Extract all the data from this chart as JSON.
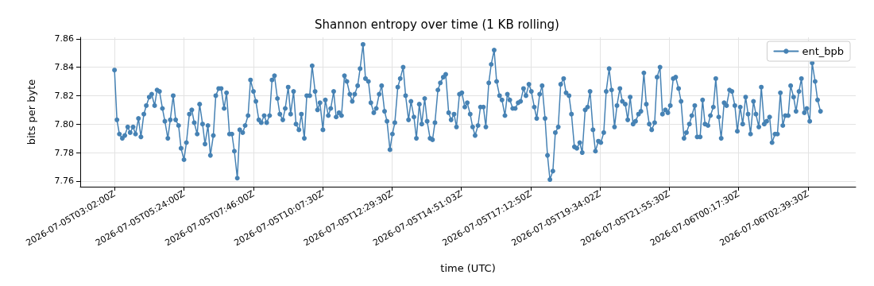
{
  "chart_data": {
    "type": "line",
    "title": "Shannon entropy over time (1 KB rolling)",
    "xlabel": "time (UTC)",
    "ylabel": "bits per byte",
    "x": [
      "2026-07-05T03:02",
      "2026-07-05T03:07",
      "2026-07-05T03:12",
      "2026-07-05T03:18",
      "2026-07-05T03:23",
      "2026-07-05T03:29",
      "2026-07-05T03:34",
      "2026-07-05T03:40",
      "2026-07-05T03:45",
      "2026-07-05T03:51",
      "2026-07-05T03:56",
      "2026-07-05T04:02",
      "2026-07-05T04:07",
      "2026-07-05T04:13",
      "2026-07-05T04:18",
      "2026-07-05T04:24",
      "2026-07-05T04:29",
      "2026-07-05T04:34",
      "2026-07-05T04:40",
      "2026-07-05T04:45",
      "2026-07-05T04:51",
      "2026-07-05T04:56",
      "2026-07-05T05:02",
      "2026-07-05T05:07",
      "2026-07-05T05:13",
      "2026-07-05T05:18",
      "2026-07-05T05:24",
      "2026-07-05T05:29",
      "2026-07-05T05:35",
      "2026-07-05T05:40",
      "2026-07-05T05:45",
      "2026-07-05T05:51",
      "2026-07-05T05:56",
      "2026-07-05T06:02",
      "2026-07-05T06:07",
      "2026-07-05T06:13",
      "2026-07-05T06:18",
      "2026-07-05T06:24",
      "2026-07-05T06:29",
      "2026-07-05T06:35",
      "2026-07-05T06:40",
      "2026-07-05T06:46",
      "2026-07-05T06:51",
      "2026-07-05T06:57",
      "2026-07-05T07:02",
      "2026-07-05T07:07",
      "2026-07-05T07:13",
      "2026-07-05T07:18",
      "2026-07-05T07:24",
      "2026-07-05T07:29",
      "2026-07-05T07:35",
      "2026-07-05T07:40",
      "2026-07-05T07:46",
      "2026-07-05T07:51",
      "2026-07-05T07:57",
      "2026-07-05T08:02",
      "2026-07-05T08:08",
      "2026-07-05T08:13",
      "2026-07-05T08:19",
      "2026-07-05T08:24",
      "2026-07-05T08:29",
      "2026-07-05T08:35",
      "2026-07-05T08:40",
      "2026-07-05T08:46",
      "2026-07-05T08:51",
      "2026-07-05T08:57",
      "2026-07-05T09:02",
      "2026-07-05T09:08",
      "2026-07-05T09:13",
      "2026-07-05T09:19",
      "2026-07-05T09:24",
      "2026-07-05T09:30",
      "2026-07-05T09:35",
      "2026-07-05T09:41",
      "2026-07-05T09:46",
      "2026-07-05T09:52",
      "2026-07-05T09:57",
      "2026-07-05T10:02",
      "2026-07-05T10:08",
      "2026-07-05T10:13",
      "2026-07-05T10:19",
      "2026-07-05T10:24",
      "2026-07-05T10:30",
      "2026-07-05T10:35",
      "2026-07-05T10:41",
      "2026-07-05T10:46",
      "2026-07-05T10:52",
      "2026-07-05T10:57",
      "2026-07-05T11:03",
      "2026-07-05T11:08",
      "2026-07-05T11:13",
      "2026-07-05T11:19",
      "2026-07-05T11:24",
      "2026-07-05T11:30",
      "2026-07-05T11:35",
      "2026-07-05T11:41",
      "2026-07-05T11:46",
      "2026-07-05T11:52",
      "2026-07-05T11:57",
      "2026-07-05T12:03",
      "2026-07-05T12:08",
      "2026-07-05T12:14",
      "2026-07-05T12:19",
      "2026-07-05T12:25",
      "2026-07-05T12:30",
      "2026-07-05T12:35",
      "2026-07-05T12:41",
      "2026-07-05T12:46",
      "2026-07-05T12:52",
      "2026-07-05T12:57",
      "2026-07-05T13:03",
      "2026-07-05T13:08",
      "2026-07-05T13:14",
      "2026-07-05T13:19",
      "2026-07-05T13:25",
      "2026-07-05T13:30",
      "2026-07-05T13:36",
      "2026-07-05T13:41",
      "2026-07-05T13:47",
      "2026-07-05T13:52",
      "2026-07-05T13:57",
      "2026-07-05T14:03",
      "2026-07-05T14:08",
      "2026-07-05T14:14",
      "2026-07-05T14:19",
      "2026-07-05T14:25",
      "2026-07-05T14:30",
      "2026-07-05T14:36",
      "2026-07-05T14:41",
      "2026-07-05T14:47",
      "2026-07-05T14:52",
      "2026-07-05T14:58",
      "2026-07-05T15:03",
      "2026-07-05T15:09",
      "2026-07-05T15:14",
      "2026-07-05T15:19",
      "2026-07-05T15:25",
      "2026-07-05T15:30",
      "2026-07-05T15:36",
      "2026-07-05T15:41",
      "2026-07-05T15:47",
      "2026-07-05T15:52",
      "2026-07-05T15:58",
      "2026-07-05T16:03",
      "2026-07-05T16:09",
      "2026-07-05T16:14",
      "2026-07-05T16:20",
      "2026-07-05T16:25",
      "2026-07-05T16:30",
      "2026-07-05T16:36",
      "2026-07-05T16:41",
      "2026-07-05T16:47",
      "2026-07-05T16:52",
      "2026-07-05T16:58",
      "2026-07-05T17:03",
      "2026-07-05T17:09",
      "2026-07-05T17:14",
      "2026-07-05T17:20",
      "2026-07-05T17:25",
      "2026-07-05T17:31",
      "2026-07-05T17:36",
      "2026-07-05T17:42",
      "2026-07-05T17:47",
      "2026-07-05T17:52",
      "2026-07-05T17:58",
      "2026-07-05T18:03",
      "2026-07-05T18:09",
      "2026-07-05T18:14",
      "2026-07-05T18:20",
      "2026-07-05T18:25",
      "2026-07-05T18:31",
      "2026-07-05T18:36",
      "2026-07-05T18:42",
      "2026-07-05T18:47",
      "2026-07-05T18:53",
      "2026-07-05T18:58",
      "2026-07-05T19:04",
      "2026-07-05T19:09",
      "2026-07-05T19:14",
      "2026-07-05T19:20",
      "2026-07-05T19:25",
      "2026-07-05T19:31",
      "2026-07-05T19:36",
      "2026-07-05T19:42",
      "2026-07-05T19:47",
      "2026-07-05T19:53",
      "2026-07-05T19:58",
      "2026-07-05T20:04",
      "2026-07-05T20:09",
      "2026-07-05T20:15",
      "2026-07-05T20:20",
      "2026-07-05T20:26",
      "2026-07-05T20:31",
      "2026-07-05T20:36",
      "2026-07-05T20:42",
      "2026-07-05T20:47",
      "2026-07-05T20:53",
      "2026-07-05T20:58",
      "2026-07-05T21:04",
      "2026-07-05T21:09",
      "2026-07-05T21:15",
      "2026-07-05T21:20",
      "2026-07-05T21:26",
      "2026-07-05T21:31",
      "2026-07-05T21:37",
      "2026-07-05T21:42",
      "2026-07-05T21:48",
      "2026-07-05T21:53",
      "2026-07-05T21:58",
      "2026-07-05T22:04",
      "2026-07-05T22:09",
      "2026-07-05T22:15",
      "2026-07-05T22:20",
      "2026-07-05T22:26",
      "2026-07-05T22:31",
      "2026-07-05T22:37",
      "2026-07-05T22:42",
      "2026-07-05T22:48",
      "2026-07-05T22:53",
      "2026-07-05T22:59",
      "2026-07-05T23:04",
      "2026-07-05T23:09",
      "2026-07-05T23:15",
      "2026-07-05T23:20",
      "2026-07-05T23:26",
      "2026-07-05T23:31",
      "2026-07-05T23:37",
      "2026-07-05T23:42",
      "2026-07-05T23:48",
      "2026-07-05T23:53",
      "2026-07-05T23:59",
      "2026-07-06T00:04",
      "2026-07-06T00:10",
      "2026-07-06T00:15",
      "2026-07-06T00:21",
      "2026-07-06T00:26",
      "2026-07-06T00:32",
      "2026-07-06T00:37",
      "2026-07-06T00:42",
      "2026-07-06T00:48",
      "2026-07-06T00:53",
      "2026-07-06T00:59",
      "2026-07-06T01:04",
      "2026-07-06T01:10",
      "2026-07-06T01:15",
      "2026-07-06T01:21",
      "2026-07-06T01:26",
      "2026-07-06T01:32",
      "2026-07-06T01:37",
      "2026-07-06T01:43",
      "2026-07-06T01:48",
      "2026-07-06T01:53",
      "2026-07-06T01:59",
      "2026-07-06T02:04",
      "2026-07-06T02:10",
      "2026-07-06T02:15",
      "2026-07-06T02:21",
      "2026-07-06T02:26",
      "2026-07-06T02:32",
      "2026-07-06T02:37",
      "2026-07-06T02:43",
      "2026-07-06T02:48",
      "2026-07-06T02:54",
      "2026-07-06T02:59",
      "2026-07-06T03:05"
    ],
    "series": [
      {
        "name": "ent_bpb",
        "color": "#4682b4",
        "values": [
          7.838,
          7.803,
          7.793,
          7.79,
          7.792,
          7.798,
          7.794,
          7.798,
          7.793,
          7.804,
          7.791,
          7.807,
          7.813,
          7.819,
          7.821,
          7.813,
          7.824,
          7.823,
          7.811,
          7.802,
          7.79,
          7.803,
          7.82,
          7.803,
          7.799,
          7.783,
          7.775,
          7.787,
          7.807,
          7.81,
          7.801,
          7.793,
          7.814,
          7.8,
          7.786,
          7.799,
          7.778,
          7.792,
          7.82,
          7.825,
          7.825,
          7.811,
          7.822,
          7.793,
          7.793,
          7.781,
          7.762,
          7.796,
          7.794,
          7.799,
          7.806,
          7.831,
          7.823,
          7.816,
          7.803,
          7.801,
          7.806,
          7.801,
          7.806,
          7.831,
          7.834,
          7.818,
          7.807,
          7.803,
          7.811,
          7.826,
          7.807,
          7.823,
          7.8,
          7.796,
          7.807,
          7.79,
          7.82,
          7.82,
          7.841,
          7.823,
          7.81,
          7.815,
          7.796,
          7.817,
          7.806,
          7.811,
          7.823,
          7.805,
          7.808,
          7.806,
          7.834,
          7.83,
          7.821,
          7.816,
          7.821,
          7.827,
          7.839,
          7.856,
          7.832,
          7.83,
          7.815,
          7.808,
          7.811,
          7.821,
          7.827,
          7.809,
          7.802,
          7.782,
          7.793,
          7.801,
          7.826,
          7.832,
          7.84,
          7.82,
          7.803,
          7.816,
          7.805,
          7.79,
          7.814,
          7.8,
          7.818,
          7.802,
          7.79,
          7.789,
          7.801,
          7.824,
          7.829,
          7.833,
          7.835,
          7.808,
          7.803,
          7.807,
          7.798,
          7.821,
          7.822,
          7.812,
          7.815,
          7.807,
          7.798,
          7.792,
          7.799,
          7.812,
          7.812,
          7.798,
          7.829,
          7.842,
          7.852,
          7.83,
          7.82,
          7.817,
          7.806,
          7.821,
          7.817,
          7.811,
          7.811,
          7.815,
          7.816,
          7.825,
          7.82,
          7.828,
          7.823,
          7.812,
          7.804,
          7.821,
          7.827,
          7.804,
          7.778,
          7.761,
          7.767,
          7.794,
          7.798,
          7.828,
          7.832,
          7.822,
          7.82,
          7.807,
          7.784,
          7.783,
          7.787,
          7.78,
          7.81,
          7.812,
          7.823,
          7.796,
          7.781,
          7.788,
          7.787,
          7.794,
          7.823,
          7.839,
          7.824,
          7.798,
          7.813,
          7.825,
          7.816,
          7.814,
          7.803,
          7.819,
          7.8,
          7.802,
          7.807,
          7.809,
          7.836,
          7.814,
          7.8,
          7.796,
          7.801,
          7.833,
          7.84,
          7.807,
          7.81,
          7.808,
          7.813,
          7.832,
          7.833,
          7.825,
          7.816,
          7.79,
          7.794,
          7.8,
          7.806,
          7.813,
          7.791,
          7.791,
          7.817,
          7.8,
          7.799,
          7.806,
          7.812,
          7.832,
          7.805,
          7.79,
          7.815,
          7.813,
          7.824,
          7.823,
          7.813,
          7.795,
          7.812,
          7.8,
          7.819,
          7.807,
          7.793,
          7.816,
          7.807,
          7.798,
          7.826,
          7.8,
          7.802,
          7.805,
          7.787,
          7.793,
          7.793,
          7.822,
          7.799,
          7.806,
          7.806,
          7.827,
          7.819,
          7.809,
          7.823,
          7.832,
          7.808,
          7.811,
          7.802,
          7.843,
          7.83,
          7.817,
          7.809
        ]
      }
    ],
    "xlim": [
      "2026-07-05T01:52",
      "2026-07-06T04:17"
    ],
    "xticks": [
      {
        "value": "2026-07-05T03:02:00",
        "label": "2026-07-05T03:02:00Z"
      },
      {
        "value": "2026-07-05T05:24:00",
        "label": "2026-07-05T05:24:00Z"
      },
      {
        "value": "2026-07-05T07:46:00",
        "label": "2026-07-05T07:46:00Z"
      },
      {
        "value": "2026-07-05T10:07:30",
        "label": "2026-07-05T10:07:30Z"
      },
      {
        "value": "2026-07-05T12:29:30",
        "label": "2026-07-05T12:29:30Z"
      },
      {
        "value": "2026-07-05T14:51:03",
        "label": "2026-07-05T14:51:03Z"
      },
      {
        "value": "2026-07-05T17:12:50",
        "label": "2026-07-05T17:12:50Z"
      },
      {
        "value": "2026-07-05T19:34:02",
        "label": "2026-07-05T19:34:02Z"
      },
      {
        "value": "2026-07-05T21:55:30",
        "label": "2026-07-05T21:55:30Z"
      },
      {
        "value": "2026-07-06T00:17:30",
        "label": "2026-07-06T00:17:30Z"
      },
      {
        "value": "2026-07-06T02:39:30",
        "label": "2026-07-06T02:39:30Z"
      }
    ],
    "ylim": [
      7.756,
      7.861
    ],
    "yticks": [
      7.76,
      7.78,
      {
        "value": 7.8,
        "label": "7.80"
      },
      7.82,
      7.84,
      7.86
    ],
    "grid": true,
    "legend": "top right",
    "marker": "circle",
    "line_style": "solid"
  }
}
